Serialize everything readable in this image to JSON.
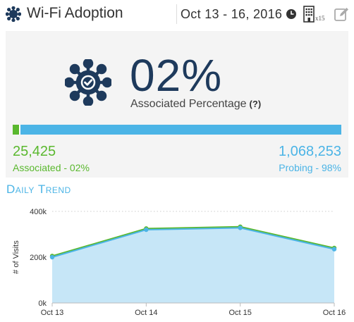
{
  "header": {
    "title": "Wi-Fi Adoption",
    "date_range": "Oct 13 - 16, 2016",
    "building_count": "x15",
    "icons": [
      "hub-icon",
      "clock-icon",
      "building-icon",
      "edit-icon"
    ]
  },
  "summary": {
    "percentage": "02%",
    "percentage_label": "Associated Percentage",
    "help": "(?)",
    "associated_fraction": 0.02,
    "associated_count": "25,425",
    "associated_label": "Associated - 02%",
    "probing_count": "1,068,253",
    "probing_label": "Probing - 98%",
    "colors": {
      "associated": "#5ab82e",
      "probing": "#4bb4e6",
      "percentage": "#1e3a5c"
    }
  },
  "trend": {
    "title": "Daily Trend"
  },
  "chart_data": {
    "type": "area",
    "categories": [
      "Oct 13",
      "Oct 14",
      "Oct 15",
      "Oct 16"
    ],
    "series": [
      {
        "values": [
          205000,
          325000,
          333000,
          240000
        ],
        "color": "#5ab82e"
      },
      {
        "values": [
          200000,
          320000,
          328000,
          235000
        ],
        "color": "#4bb4e6"
      }
    ],
    "ylabel": "# of Visits",
    "yticks": [
      "0k",
      "200k",
      "400k"
    ],
    "ylim": [
      0,
      400000
    ],
    "grid": true
  }
}
